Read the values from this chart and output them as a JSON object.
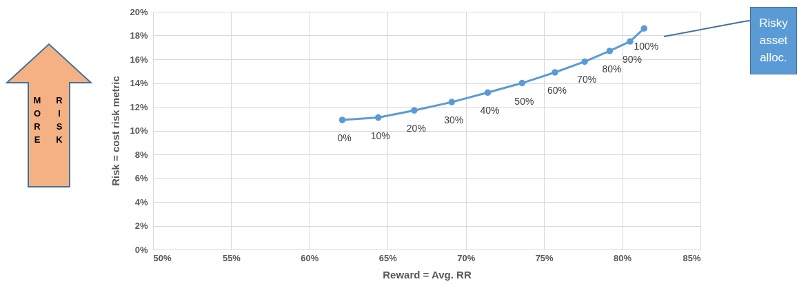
{
  "chart_data": {
    "type": "line",
    "xlabel": "Reward = Avg. RR",
    "ylabel": "Risk = cost risk metric",
    "x": [
      62.1,
      64.4,
      66.7,
      69.1,
      71.4,
      73.6,
      75.7,
      77.6,
      79.2,
      80.5,
      81.4
    ],
    "series": [
      {
        "color": "#5b9bd5",
        "values": [
          10.9,
          11.1,
          11.7,
          12.4,
          13.2,
          14.0,
          14.9,
          15.8,
          16.7,
          17.5,
          18.6
        ]
      }
    ],
    "xlim": [
      50,
      85
    ],
    "xticks": [
      {
        "value": 50,
        "label": "50%"
      },
      {
        "value": 55,
        "label": "55%"
      },
      {
        "value": 60,
        "label": "60%"
      },
      {
        "value": 65,
        "label": "65%"
      },
      {
        "value": 70,
        "label": "70%"
      },
      {
        "value": 75,
        "label": "75%"
      },
      {
        "value": 80,
        "label": "80%"
      },
      {
        "value": 85,
        "label": "85%"
      }
    ],
    "ylim": [
      0,
      20
    ],
    "yticks": [
      {
        "value": 0,
        "label": "0%"
      },
      {
        "value": 2,
        "label": "2%"
      },
      {
        "value": 4,
        "label": "4%"
      },
      {
        "value": 6,
        "label": "6%"
      },
      {
        "value": 8,
        "label": "8%"
      },
      {
        "value": 10,
        "label": "10%"
      },
      {
        "value": 12,
        "label": "12%"
      },
      {
        "value": 14,
        "label": "14%"
      },
      {
        "value": 16,
        "label": "16%"
      },
      {
        "value": 18,
        "label": "18%"
      },
      {
        "value": 20,
        "label": "20%"
      }
    ],
    "grid": true,
    "marker": "circle",
    "line_style": "solid",
    "annotations": [
      "M",
      "O",
      "R",
      "E",
      "R",
      "I",
      "S",
      "K",
      "Risky asset alloc.",
      {
        "text": "0%",
        "x": 62.1,
        "y": 10.9
      },
      {
        "text": "10%",
        "x": 64.4,
        "y": 11.1
      },
      {
        "text": "20%",
        "x": 66.7,
        "y": 11.7
      },
      {
        "text": "30%",
        "x": 69.1,
        "y": 12.4
      },
      {
        "text": "40%",
        "x": 71.4,
        "y": 13.2
      },
      {
        "text": "50%",
        "x": 73.6,
        "y": 14.0
      },
      {
        "text": "60%",
        "x": 75.7,
        "y": 14.9
      },
      {
        "text": "70%",
        "x": 77.6,
        "y": 15.8
      },
      {
        "text": "80%",
        "x": 79.2,
        "y": 16.7
      },
      {
        "text": "90%",
        "x": 80.5,
        "y": 17.5
      },
      {
        "text": "100%",
        "x": 81.4,
        "y": 18.6
      }
    ]
  }
}
